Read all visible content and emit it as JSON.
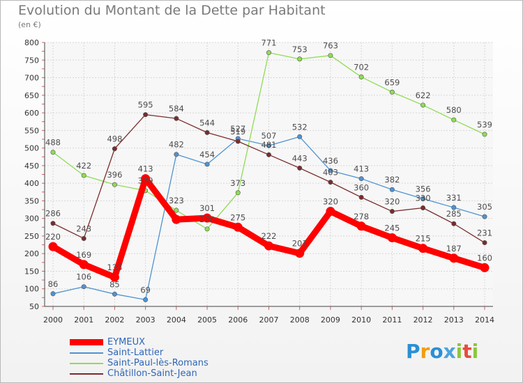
{
  "header": {
    "title": "Evolution du Montant de la Dette par Habitant",
    "unit": "(en €)"
  },
  "brand": {
    "logo_text": "Proxiti"
  },
  "chart_data": {
    "type": "line",
    "x": [
      "2000",
      "2001",
      "2002",
      "2003",
      "2004",
      "2005",
      "2006",
      "2007",
      "2008",
      "2009",
      "2010",
      "2011",
      "2012",
      "2013",
      "2014"
    ],
    "ylim": [
      50,
      800
    ],
    "yticks": [
      50,
      100,
      150,
      200,
      250,
      300,
      350,
      400,
      450,
      500,
      550,
      600,
      650,
      700,
      750,
      800
    ],
    "grid": true,
    "legend_position": "bottom-left",
    "series": [
      {
        "name": "EYMEUX",
        "color": "#ff0000",
        "values": [
          220,
          169,
          133,
          413,
          297,
          301,
          275,
          222,
          201,
          320,
          278,
          245,
          215,
          187,
          160
        ],
        "labels": [
          "220",
          "169",
          "133",
          "413",
          "",
          "301",
          "275",
          "222",
          "201",
          "320",
          "278",
          "245",
          "215",
          "187",
          "160"
        ]
      },
      {
        "name": "Saint-Lattier",
        "color": "#4f93d1",
        "values": [
          86,
          106,
          85,
          69,
          482,
          454,
          527,
          507,
          532,
          436,
          413,
          382,
          356,
          331,
          305
        ],
        "labels": [
          "86",
          "106",
          "85",
          "69",
          "482",
          "454",
          "527",
          "507",
          "532",
          "436",
          "413",
          "382",
          "356",
          "331",
          "305"
        ]
      },
      {
        "name": "Saint-Paul-lès-Romans",
        "color": "#8fdc54",
        "values": [
          488,
          422,
          396,
          379,
          323,
          270,
          373,
          771,
          753,
          763,
          702,
          659,
          622,
          580,
          539
        ],
        "labels": [
          "488",
          "422",
          "396",
          "379",
          "323",
          "270",
          "373",
          "771",
          "753",
          "763",
          "702",
          "659",
          "622",
          "580",
          "539"
        ]
      },
      {
        "name": "Châtillon-Saint-Jean",
        "color": "#7a2c2c",
        "values": [
          286,
          243,
          498,
          595,
          584,
          544,
          519,
          481,
          443,
          403,
          360,
          320,
          330,
          285,
          231
        ],
        "labels": [
          "286",
          "243",
          "498",
          "595",
          "584",
          "544",
          "519",
          "481",
          "443",
          "403",
          "360",
          "320",
          "330",
          "285",
          "231"
        ]
      }
    ]
  }
}
